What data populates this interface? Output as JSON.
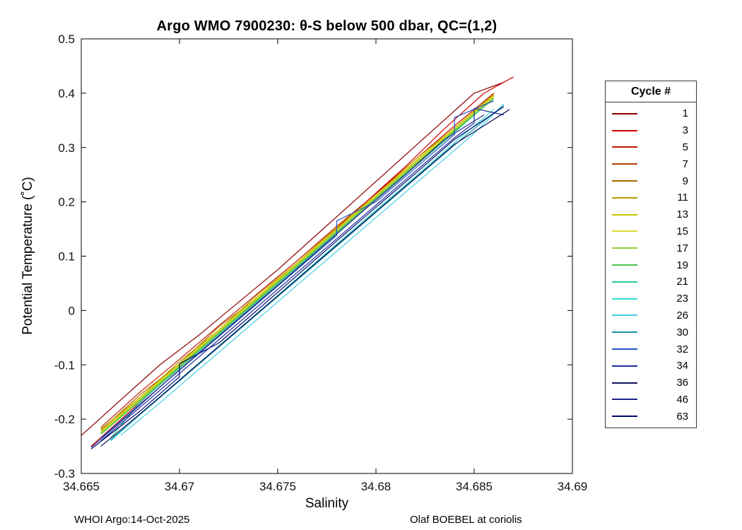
{
  "figure": {
    "footer_left": "WHOI Argo:14-Oct-2025",
    "footer_right": "Olaf BOEBEL at coriolis"
  },
  "legend": {
    "title": "Cycle #"
  },
  "chart_data": {
    "type": "line",
    "title": "Argo WMO 7900230: θ-S below 500 dbar,  QC=(1,2)",
    "xlabel": "Salinity",
    "ylabel": "Potential Temperature (˚C)",
    "xlim": [
      34.665,
      34.69
    ],
    "ylim": [
      -0.3,
      0.5
    ],
    "grid": false,
    "legend_position": "right-outside",
    "x_ticks": {
      "values": [
        34.665,
        34.67,
        34.675,
        34.68,
        34.685,
        34.69
      ],
      "labels": [
        "34.665",
        "34.67",
        "34.675",
        "34.68",
        "34.685",
        "34.69"
      ]
    },
    "y_ticks": {
      "values": [
        -0.3,
        -0.2,
        -0.1,
        0,
        0.1,
        0.2,
        0.3,
        0.4,
        0.5
      ],
      "labels": [
        "-0.3",
        "-0.2",
        "-0.1",
        "0",
        "0.1",
        "0.2",
        "0.3",
        "0.4",
        "0.5"
      ]
    },
    "series": [
      {
        "name": "1",
        "color": "#8C0000",
        "x": [
          34.665,
          34.667,
          34.669,
          34.671,
          34.673,
          34.675,
          34.677,
          34.679,
          34.681,
          34.683,
          34.685,
          34.6865
        ],
        "y": [
          -0.23,
          -0.165,
          -0.1,
          -0.045,
          0.015,
          0.075,
          0.14,
          0.205,
          0.27,
          0.335,
          0.4,
          0.42
        ]
      },
      {
        "name": "3",
        "color": "#D40000",
        "x": [
          34.6655,
          34.6675,
          34.6695,
          34.6715,
          34.6735,
          34.6755,
          34.6775,
          34.6795,
          34.6815,
          34.6835,
          34.6855,
          34.687
        ],
        "y": [
          -0.25,
          -0.185,
          -0.12,
          -0.055,
          0.005,
          0.07,
          0.135,
          0.2,
          0.265,
          0.335,
          0.4,
          0.43
        ]
      },
      {
        "name": "5",
        "color": "#C01800",
        "x": [
          34.666,
          34.668,
          34.67,
          34.672,
          34.674,
          34.676,
          34.678,
          34.68,
          34.682,
          34.684,
          34.686
        ],
        "y": [
          -0.215,
          -0.15,
          -0.09,
          -0.028,
          0.032,
          0.092,
          0.155,
          0.215,
          0.278,
          0.34,
          0.4
        ]
      },
      {
        "name": "7",
        "color": "#B24000",
        "x": [
          34.666,
          34.668,
          34.67,
          34.672,
          34.674,
          34.676,
          34.678,
          34.68,
          34.682,
          34.684,
          34.686
        ],
        "y": [
          -0.225,
          -0.162,
          -0.1,
          -0.04,
          0.022,
          0.085,
          0.148,
          0.21,
          0.27,
          0.33,
          0.39
        ]
      },
      {
        "name": "9",
        "color": "#A96A00",
        "x": [
          34.666,
          34.668,
          34.67,
          34.672,
          34.674,
          34.676,
          34.678,
          34.68,
          34.682,
          34.684,
          34.686
        ],
        "y": [
          -0.22,
          -0.155,
          -0.098,
          -0.03,
          0.025,
          0.088,
          0.15,
          0.21,
          0.272,
          0.334,
          0.396
        ]
      },
      {
        "name": "11",
        "color": "#B89B00",
        "x": [
          34.666,
          34.668,
          34.67,
          34.672,
          34.674,
          34.676,
          34.678,
          34.68,
          34.682,
          34.684,
          34.686
        ],
        "y": [
          -0.218,
          -0.16,
          -0.094,
          -0.036,
          0.03,
          0.088,
          0.154,
          0.212,
          0.278,
          0.336,
          0.398
        ]
      },
      {
        "name": "13",
        "color": "#C8C800",
        "x": [
          34.666,
          34.668,
          34.67,
          34.672,
          34.674,
          34.676,
          34.678,
          34.68,
          34.682,
          34.684,
          34.686
        ],
        "y": [
          -0.222,
          -0.16,
          -0.098,
          -0.036,
          0.026,
          0.088,
          0.15,
          0.212,
          0.274,
          0.336,
          0.396
        ]
      },
      {
        "name": "15",
        "color": "#DADA30",
        "x": [
          34.666,
          34.668,
          34.67,
          34.672,
          34.674,
          34.676,
          34.678,
          34.68,
          34.682,
          34.684,
          34.686
        ],
        "y": [
          -0.224,
          -0.162,
          -0.1,
          -0.038,
          0.024,
          0.086,
          0.148,
          0.21,
          0.272,
          0.334,
          0.394
        ]
      },
      {
        "name": "17",
        "color": "#90D035",
        "x": [
          34.666,
          34.668,
          34.67,
          34.672,
          34.674,
          34.676,
          34.678,
          34.68,
          34.682,
          34.684,
          34.686
        ],
        "y": [
          -0.226,
          -0.164,
          -0.102,
          -0.04,
          0.022,
          0.084,
          0.146,
          0.208,
          0.27,
          0.332,
          0.392
        ]
      },
      {
        "name": "19",
        "color": "#4CC24C",
        "x": [
          34.666,
          34.668,
          34.67,
          34.672,
          34.674,
          34.676,
          34.678,
          34.68,
          34.682,
          34.684,
          34.686
        ],
        "y": [
          -0.228,
          -0.166,
          -0.104,
          -0.042,
          0.02,
          0.082,
          0.144,
          0.206,
          0.268,
          0.33,
          0.39
        ]
      },
      {
        "name": "21",
        "color": "#2BCF8E",
        "x": [
          34.6665,
          34.668,
          34.67,
          34.672,
          34.674,
          34.676,
          34.678,
          34.68,
          34.682,
          34.684,
          34.6855
        ],
        "y": [
          -0.235,
          -0.168,
          -0.106,
          -0.044,
          0.018,
          0.08,
          0.142,
          0.204,
          0.266,
          0.328,
          0.375
        ]
      },
      {
        "name": "23",
        "color": "#2FE0CE",
        "x": [
          34.6665,
          34.6685,
          34.6705,
          34.6725,
          34.6745,
          34.6765,
          34.6785,
          34.6805,
          34.6825,
          34.6845,
          34.686
        ],
        "y": [
          -0.24,
          -0.175,
          -0.112,
          -0.05,
          0.012,
          0.075,
          0.138,
          0.2,
          0.262,
          0.325,
          0.37
        ]
      },
      {
        "name": "26",
        "color": "#45CFE0",
        "x": [
          34.667,
          34.669,
          34.671,
          34.673,
          34.675,
          34.677,
          34.679,
          34.681,
          34.683,
          34.685,
          34.6865
        ],
        "y": [
          -0.23,
          -0.17,
          -0.108,
          -0.046,
          0.016,
          0.078,
          0.14,
          0.202,
          0.264,
          0.326,
          0.38
        ]
      },
      {
        "name": "30",
        "color": "#1A92A8",
        "x": [
          34.6665,
          34.6685,
          34.6705,
          34.6725,
          34.6745,
          34.6765,
          34.6785,
          34.6805,
          34.6825,
          34.6845,
          34.6865
        ],
        "y": [
          -0.238,
          -0.176,
          -0.114,
          -0.052,
          0.01,
          0.072,
          0.134,
          0.196,
          0.258,
          0.32,
          0.378
        ]
      },
      {
        "name": "32",
        "color": "#2356C4",
        "x": [
          34.666,
          34.668,
          34.67,
          34.672,
          34.674,
          34.676,
          34.678,
          34.678,
          34.68,
          34.682,
          34.684,
          34.684,
          34.686
        ],
        "y": [
          -0.235,
          -0.172,
          -0.11,
          -0.048,
          0.014,
          0.076,
          0.138,
          0.165,
          0.2,
          0.262,
          0.324,
          0.355,
          0.386
        ]
      },
      {
        "name": "34",
        "color": "#1A2C9C",
        "x": [
          34.666,
          34.668,
          34.67,
          34.672,
          34.674,
          34.676,
          34.678,
          34.68,
          34.682,
          34.684,
          34.685,
          34.685,
          34.6865
        ],
        "y": [
          -0.24,
          -0.178,
          -0.116,
          -0.054,
          0.008,
          0.07,
          0.132,
          0.194,
          0.256,
          0.318,
          0.345,
          0.372,
          0.36
        ]
      },
      {
        "name": "36",
        "color": "#0F1260",
        "x": [
          34.666,
          34.668,
          34.67,
          34.672,
          34.674,
          34.676,
          34.678,
          34.68,
          34.682,
          34.684,
          34.6868
        ],
        "y": [
          -0.25,
          -0.19,
          -0.128,
          -0.066,
          -0.004,
          0.058,
          0.12,
          0.182,
          0.244,
          0.306,
          0.37
        ]
      },
      {
        "name": "46",
        "color": "#1E2387",
        "x": [
          34.6655,
          34.6675,
          34.6695,
          34.6715,
          34.6735,
          34.6755,
          34.6775,
          34.6795,
          34.6815,
          34.6835,
          34.6855
        ],
        "y": [
          -0.252,
          -0.19,
          -0.125,
          -0.062,
          0.0,
          0.062,
          0.125,
          0.188,
          0.25,
          0.315,
          0.36
        ]
      },
      {
        "name": "63",
        "color": "#000870",
        "x": [
          34.6655,
          34.668,
          34.67,
          34.67,
          34.672,
          34.674,
          34.676,
          34.678,
          34.68,
          34.682,
          34.684,
          34.6865
        ],
        "y": [
          -0.255,
          -0.185,
          -0.122,
          -0.098,
          -0.06,
          0.002,
          0.065,
          0.128,
          0.19,
          0.252,
          0.315,
          0.375
        ]
      }
    ]
  }
}
